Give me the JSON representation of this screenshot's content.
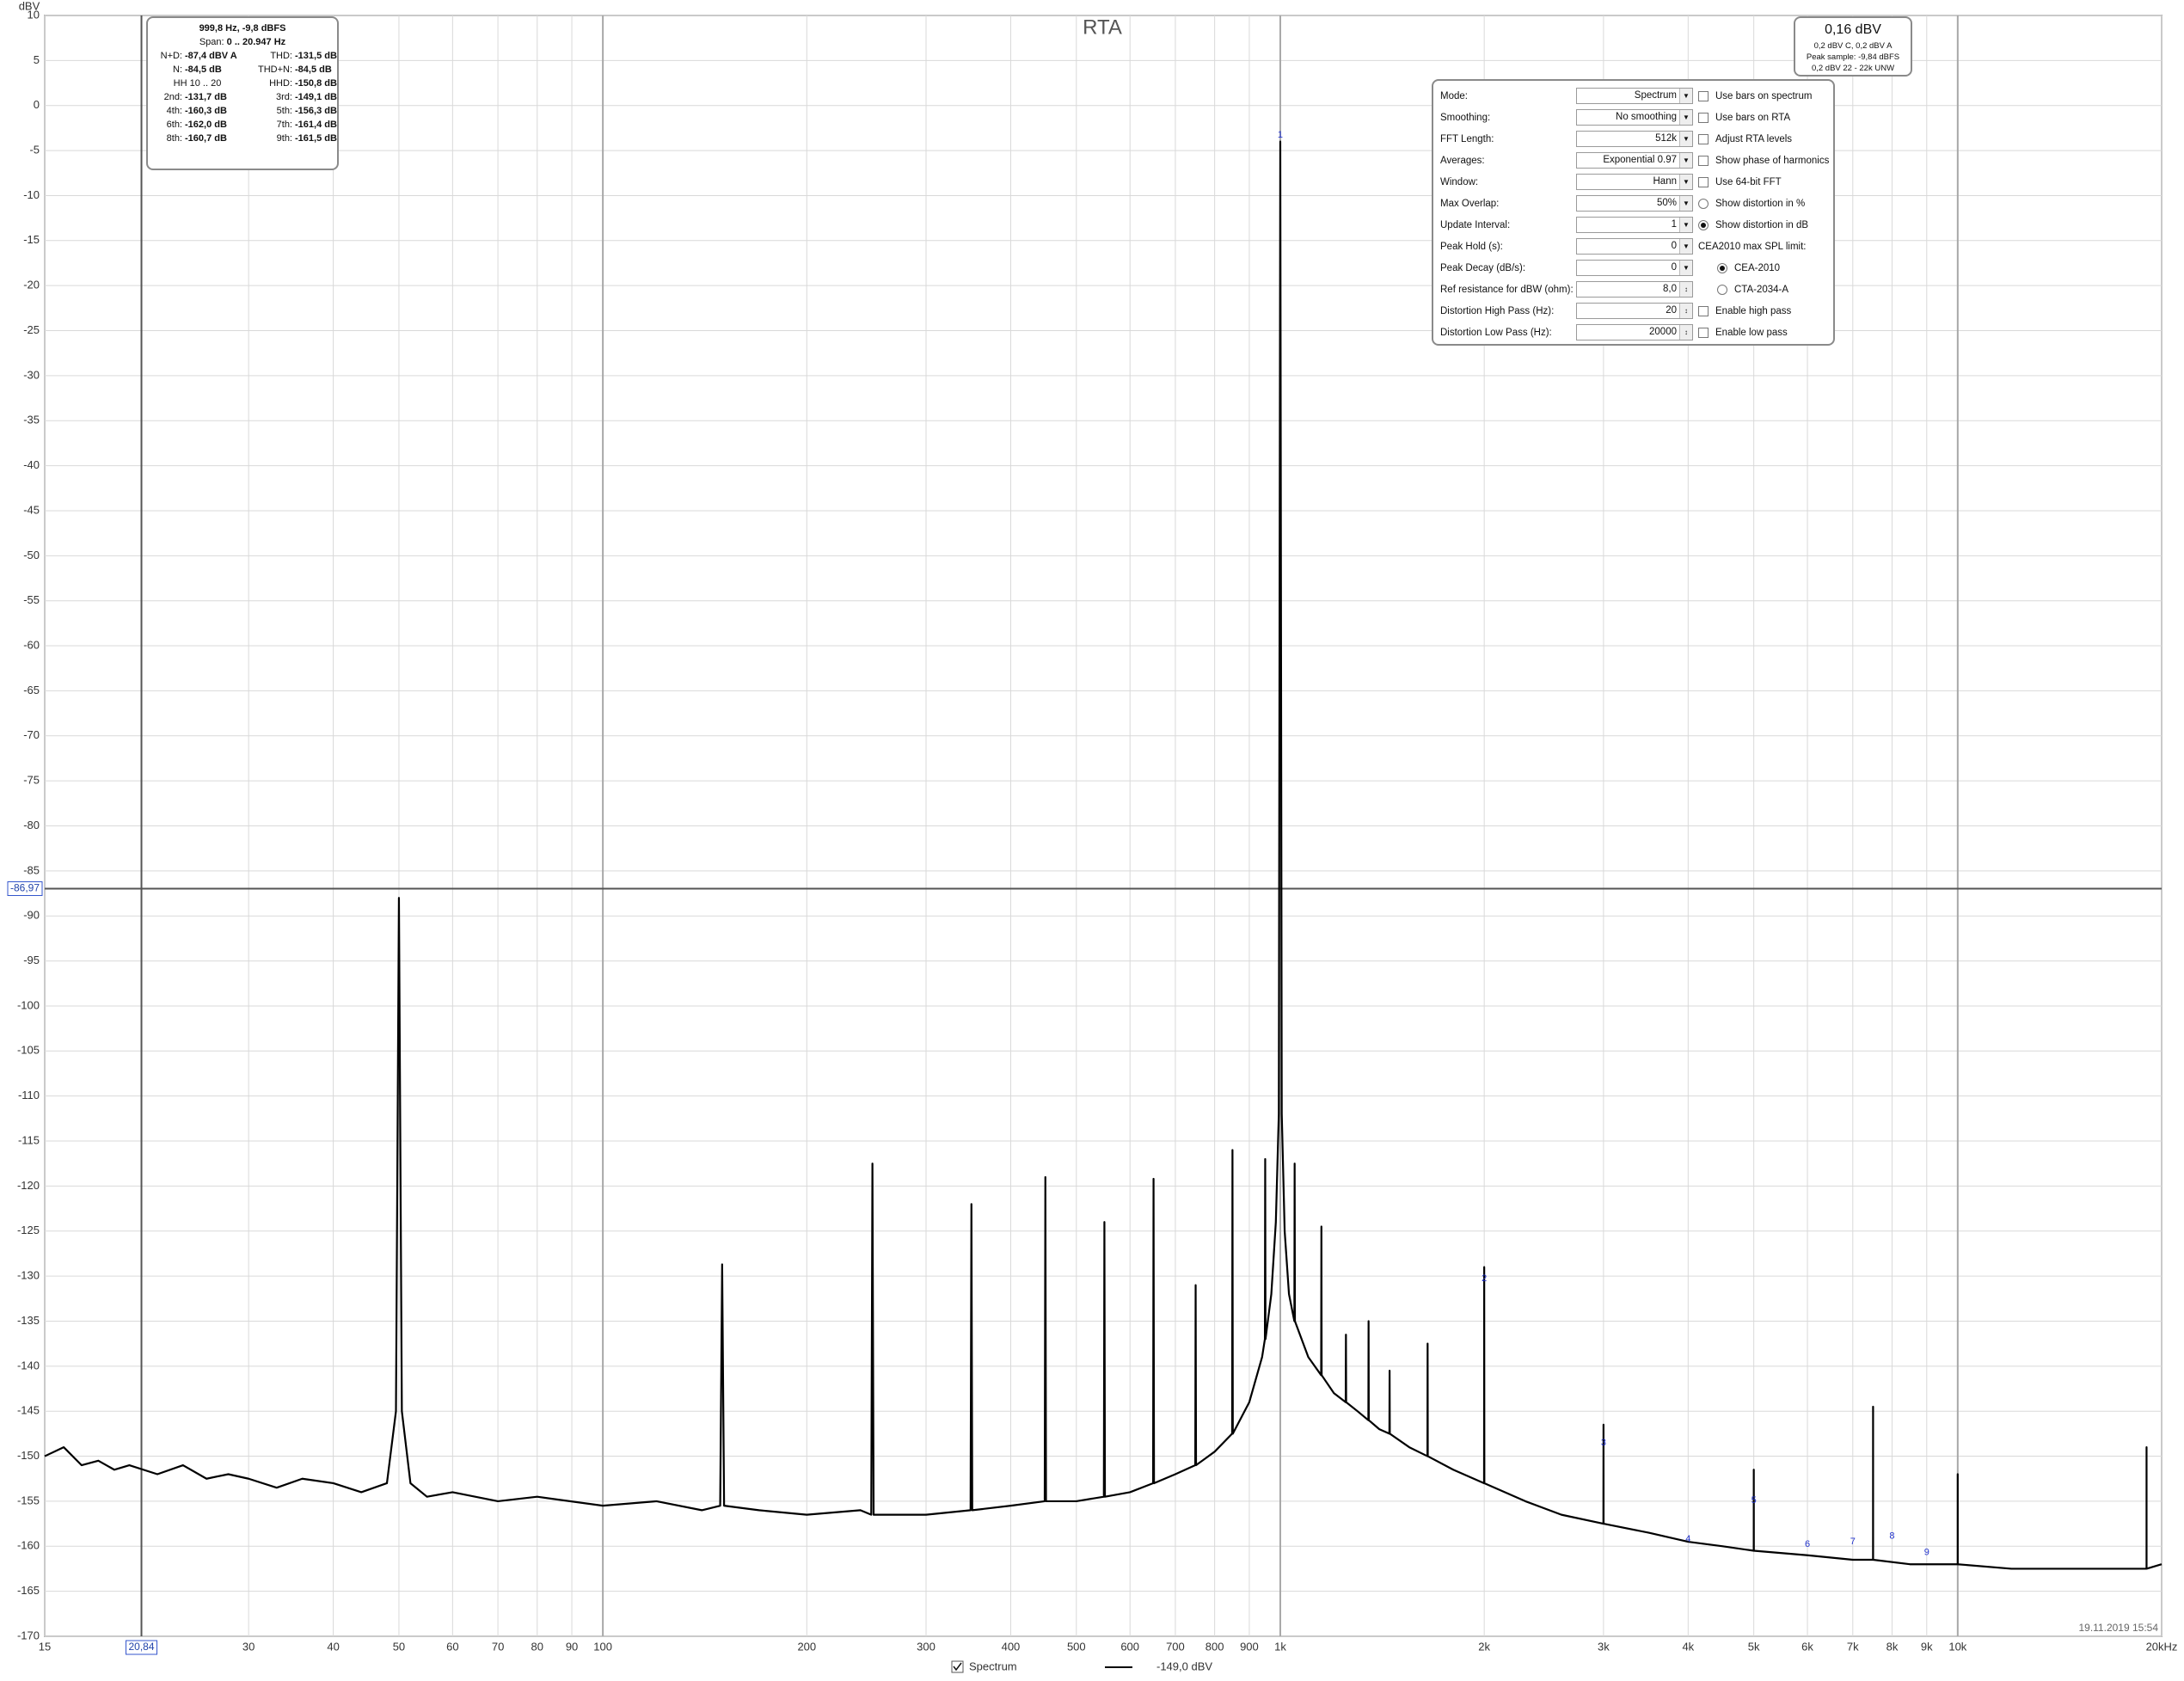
{
  "chart_data": {
    "type": "line",
    "title": "RTA",
    "y_label": "dBV",
    "x_scale": "log",
    "grid": true,
    "xlim": [
      15,
      20000
    ],
    "ylim": [
      -170,
      10
    ],
    "xticks": [
      15,
      30,
      40,
      50,
      60,
      70,
      80,
      90,
      100,
      200,
      300,
      400,
      500,
      600,
      700,
      800,
      900,
      {
        "value": 1000,
        "label": "1k"
      },
      {
        "value": 2000,
        "label": "2k"
      },
      {
        "value": 3000,
        "label": "3k"
      },
      {
        "value": 4000,
        "label": "4k"
      },
      {
        "value": 5000,
        "label": "5k"
      },
      {
        "value": 6000,
        "label": "6k"
      },
      {
        "value": 7000,
        "label": "7k"
      },
      {
        "value": 8000,
        "label": "8k"
      },
      {
        "value": 9000,
        "label": "9k"
      },
      {
        "value": 10000,
        "label": "10k"
      },
      {
        "value": 20000,
        "label": "20kHz"
      }
    ],
    "yticks": [
      10,
      5,
      0,
      -5,
      -10,
      -15,
      -20,
      -25,
      -30,
      -35,
      -40,
      -45,
      -50,
      -55,
      -60,
      -65,
      -70,
      -75,
      -80,
      -85,
      -90,
      -95,
      -100,
      -105,
      -110,
      -115,
      -120,
      -125,
      -130,
      -135,
      -140,
      -145,
      -150,
      -155,
      -160,
      -165,
      -170
    ],
    "series": [
      {
        "name": "Spectrum",
        "color": "#000000",
        "readout": "-149,0 dBV",
        "x": [
          15,
          16,
          17,
          18,
          19,
          20,
          22,
          24,
          26,
          28,
          30,
          33,
          36,
          40,
          44,
          48,
          49.5,
          50,
          50.5,
          52,
          55,
          60,
          70,
          80,
          100,
          120,
          140,
          149,
          150,
          151,
          170,
          200,
          240,
          249,
          250,
          251,
          300,
          349,
          350,
          351,
          400,
          449,
          450,
          451,
          500,
          549,
          550,
          551,
          600,
          649,
          650,
          651,
          700,
          749,
          750,
          751,
          800,
          849,
          850,
          851,
          900,
          940,
          949,
          950,
          951,
          970,
          985,
          995,
          1000,
          1005,
          1015,
          1030,
          1049,
          1050,
          1051,
          1100,
          1149,
          1150,
          1151,
          1200,
          1249,
          1250,
          1251,
          1300,
          1349,
          1350,
          1351,
          1400,
          1449,
          1450,
          1451,
          1550,
          1649,
          1650,
          1651,
          1800,
          1999,
          2000,
          2001,
          2300,
          2600,
          2999,
          3000,
          3001,
          3500,
          4000,
          4500,
          4999,
          5000,
          5001,
          6000,
          7000,
          7499,
          7500,
          7501,
          8500,
          9999,
          10000,
          10001,
          12000,
          15000,
          18999,
          19000,
          19001,
          20000
        ],
        "values": [
          -150,
          -149,
          -151,
          -150.5,
          -151.5,
          -151,
          -152,
          -151,
          -152.5,
          -152,
          -152.5,
          -153.5,
          -152.5,
          -153,
          -154,
          -153,
          -145,
          -88,
          -145,
          -153,
          -154.5,
          -154,
          -155,
          -154.5,
          -155.5,
          -155,
          -156,
          -155.5,
          -128.7,
          -155.5,
          -156,
          -156.5,
          -156,
          -156.5,
          -117.5,
          -156.5,
          -156.5,
          -156,
          -122,
          -156,
          -155.5,
          -155,
          -119,
          -155,
          -155,
          -154.5,
          -124,
          -154.5,
          -154,
          -153,
          -119.2,
          -153,
          -152,
          -151,
          -131,
          -151,
          -149.5,
          -147.5,
          -116,
          -147.5,
          -144,
          -139,
          -137,
          -117,
          -137,
          -132,
          -124,
          -112,
          -4,
          -112,
          -125,
          -132,
          -135,
          -117.5,
          -135,
          -139,
          -141,
          -124.5,
          -141,
          -143,
          -144,
          -136.5,
          -144,
          -145,
          -146,
          -135,
          -146,
          -147,
          -147.5,
          -140.5,
          -147.5,
          -149,
          -150,
          -137.5,
          -150,
          -151.5,
          -153,
          -129,
          -153,
          -155,
          -156.5,
          -157.5,
          -146.5,
          -157.5,
          -158.5,
          -159.5,
          -160,
          -160.5,
          -151.5,
          -160.5,
          -161,
          -161.5,
          -161.5,
          -144.5,
          -161.5,
          -162,
          -162,
          -152,
          -162,
          -162.5,
          -162.5,
          -162.5,
          -149,
          -162.5,
          -162
        ]
      }
    ],
    "cursor": {
      "x": {
        "value": 20.84,
        "label": "20,84"
      },
      "y": {
        "value": -86.97,
        "label": "-86,97"
      }
    },
    "harmonics": [
      {
        "label": "1",
        "x": 1000,
        "y": -3.3
      },
      {
        "label": "2",
        "x": 2000,
        "y": -130.3
      },
      {
        "label": "3",
        "x": 3000,
        "y": -148.5
      },
      {
        "label": "4",
        "x": 4000,
        "y": -159.2
      },
      {
        "label": "5",
        "x": 5000,
        "y": -154.9
      },
      {
        "label": "6",
        "x": 6000,
        "y": -159.8
      },
      {
        "label": "7",
        "x": 7000,
        "y": -159.5
      },
      {
        "label": "8",
        "x": 8000,
        "y": -158.9
      },
      {
        "label": "9",
        "x": 9000,
        "y": -160.7
      }
    ],
    "timestamp": "19.11.2019 15:54"
  },
  "info_box": {
    "header": "999,8 Hz, -9,8 dBFS",
    "span_label": "Span:",
    "span_value": "0 .. 20.947 Hz",
    "rows": [
      [
        {
          "label": "N+D:",
          "value": "-87,4 dBV A"
        },
        {
          "label": "THD:",
          "value": "-131,5 dB"
        }
      ],
      [
        {
          "label": "N:",
          "value": "-84,5 dB"
        },
        {
          "label": "THD+N:",
          "value": "-84,5 dB"
        }
      ],
      [
        {
          "label": "HH 10 .. 20"
        },
        {
          "label": "HHD:",
          "value": "-150,8 dB"
        }
      ],
      [
        {
          "label": "2nd:",
          "value": "-131,7 dB"
        },
        {
          "label": "3rd:",
          "value": "-149,1 dB"
        }
      ],
      [
        {
          "label": "4th:",
          "value": "-160,3 dB"
        },
        {
          "label": "5th:",
          "value": "-156,3 dB"
        }
      ],
      [
        {
          "label": "6th:",
          "value": "-162,0 dB"
        },
        {
          "label": "7th:",
          "value": "-161,4 dB"
        }
      ],
      [
        {
          "label": "8th:",
          "value": "-160,7 dB"
        },
        {
          "label": "9th:",
          "value": "-161,5 dB"
        }
      ]
    ]
  },
  "level_box": {
    "level": "0,16 dBV",
    "lines": [
      "0,2 dBV C, 0,2 dBV A",
      "Peak sample: -9,84 dBFS",
      "0,2 dBV 22 - 22k UNW"
    ]
  },
  "settings": {
    "rows": [
      {
        "label": "Mode:",
        "value": "Spectrum",
        "control": "dropdown"
      },
      {
        "label": "Smoothing:",
        "value": "No  smoothing",
        "control": "dropdown"
      },
      {
        "label": "FFT Length:",
        "value": "512k",
        "control": "dropdown"
      },
      {
        "label": "Averages:",
        "value": "Exponential 0.97",
        "control": "dropdown"
      },
      {
        "label": "Window:",
        "value": "Hann",
        "control": "dropdown"
      },
      {
        "label": "Max Overlap:",
        "value": "50%",
        "control": "dropdown"
      },
      {
        "label": "Update Interval:",
        "value": "1",
        "control": "dropdown"
      },
      {
        "label": "Peak Hold (s):",
        "value": "0",
        "control": "dropdown"
      },
      {
        "label": "Peak Decay (dB/s):",
        "value": "0",
        "control": "dropdown"
      },
      {
        "label": "Ref resistance for dBW (ohm):",
        "value": "8,0",
        "control": "spin"
      },
      {
        "label": "Distortion High Pass (Hz):",
        "value": "20",
        "control": "spin"
      },
      {
        "label": "Distortion Low Pass (Hz):",
        "value": "20000",
        "control": "spin"
      }
    ],
    "options": [
      {
        "label": "Use bars on spectrum",
        "control": "checkbox",
        "checked": false
      },
      {
        "label": "Use bars on RTA",
        "control": "checkbox",
        "checked": false
      },
      {
        "label": "Adjust RTA levels",
        "control": "checkbox",
        "checked": false
      },
      {
        "label": "Show phase of harmonics",
        "control": "checkbox",
        "checked": false
      },
      {
        "label": "Use 64-bit FFT",
        "control": "checkbox",
        "checked": false
      },
      {
        "label": "Show distortion in %",
        "control": "radio",
        "checked": false
      },
      {
        "label": "Show distortion in dB",
        "control": "radio",
        "checked": true
      },
      {
        "label": "CEA2010 max SPL limit:",
        "control": "text"
      },
      {
        "label": "CEA-2010",
        "control": "radio",
        "checked": true,
        "indent": true
      },
      {
        "label": "CTA-2034-A",
        "control": "radio",
        "checked": false,
        "indent": true
      },
      {
        "label": "Enable high pass",
        "control": "checkbox",
        "checked": false
      },
      {
        "label": "Enable low pass",
        "control": "checkbox",
        "checked": false
      }
    ]
  }
}
